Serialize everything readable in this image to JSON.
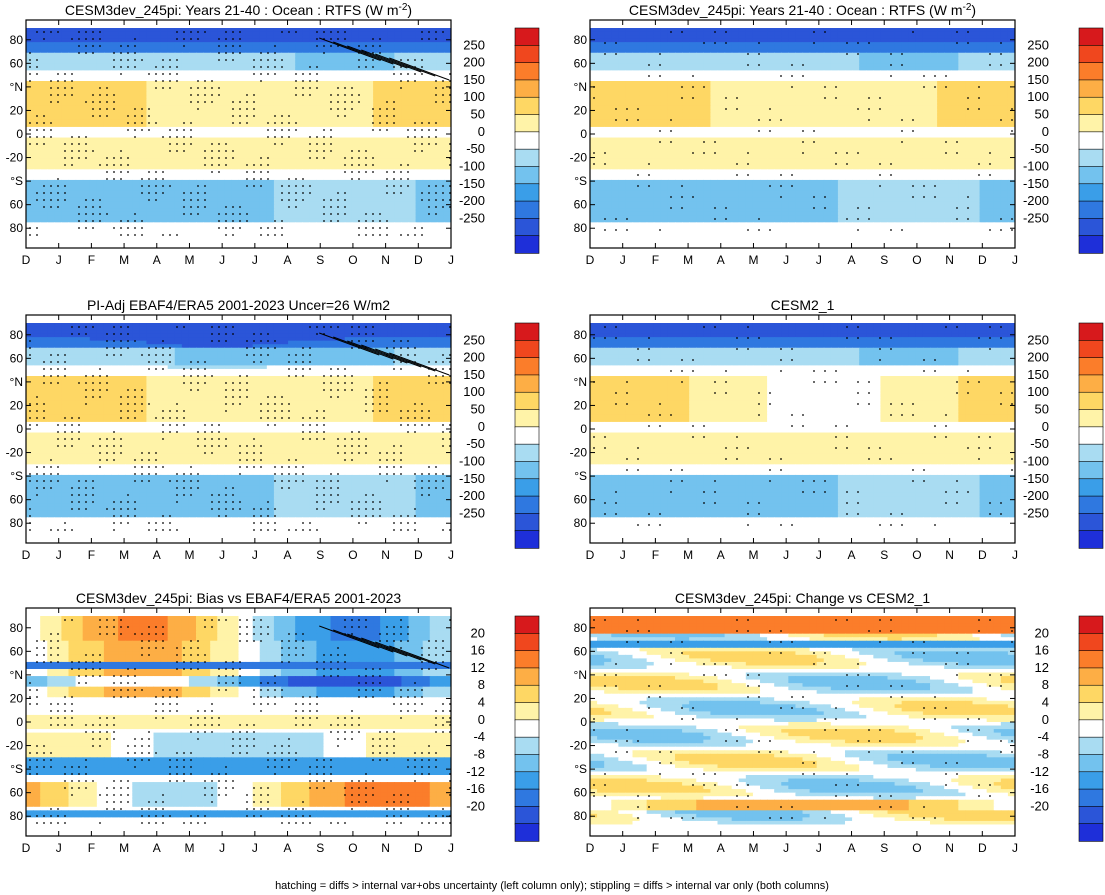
{
  "footnote": "hatching = diffs > internal var+obs uncertainty (left column only); stippling = diffs > internal var only (both columns)",
  "chart_data": [
    {
      "type": "heatmap",
      "id": "p1",
      "title_main": "CESM3dev_245pi: Years 21-40 : Ocean : RTFS (W m",
      "title_sup": "-2",
      "title_tail": ")",
      "x_labels": [
        "D",
        "J",
        "F",
        "M",
        "A",
        "M",
        "J",
        "J",
        "A",
        "S",
        "O",
        "N",
        "D",
        "J"
      ],
      "y_ticks": [
        {
          "v": 80,
          "l": "80"
        },
        {
          "v": 60,
          "l": "60"
        },
        {
          "v": 40,
          "l": "°N"
        },
        {
          "v": 20,
          "l": "20"
        },
        {
          "v": 0,
          "l": "0"
        },
        {
          "v": -20,
          "l": "-20"
        },
        {
          "v": -40,
          "l": "°S"
        },
        {
          "v": -60,
          "l": "60"
        },
        {
          "v": -80,
          "l": "80"
        }
      ],
      "ylim": [
        -90,
        90
      ],
      "colorbar": {
        "levels": [
          "250",
          "200",
          "150",
          "100",
          "50",
          "0",
          "-50",
          "-100",
          "-150",
          "-200",
          "-250"
        ]
      },
      "hatched": true,
      "stipple": "heavy"
    },
    {
      "type": "heatmap",
      "id": "p2",
      "title_main": "CESM3dev_245pi: Years 21-40 : Ocean : RTFS (W m",
      "title_sup": "-2",
      "title_tail": ")",
      "x_labels": [
        "D",
        "J",
        "F",
        "M",
        "A",
        "M",
        "J",
        "J",
        "A",
        "S",
        "O",
        "N",
        "D",
        "J"
      ],
      "y_ticks": [
        {
          "v": 80,
          "l": "80"
        },
        {
          "v": 60,
          "l": "60"
        },
        {
          "v": 40,
          "l": "°N"
        },
        {
          "v": 20,
          "l": "20"
        },
        {
          "v": 0,
          "l": "0"
        },
        {
          "v": -20,
          "l": "-20"
        },
        {
          "v": -40,
          "l": "°S"
        },
        {
          "v": -60,
          "l": "60"
        },
        {
          "v": -80,
          "l": "80"
        }
      ],
      "ylim": [
        -90,
        90
      ],
      "colorbar": {
        "levels": [
          "250",
          "200",
          "150",
          "100",
          "50",
          "0",
          "-50",
          "-100",
          "-150",
          "-200",
          "-250"
        ]
      },
      "hatched": false,
      "stipple": "light"
    },
    {
      "type": "heatmap",
      "id": "p3",
      "title_main": "PI-Adj EBAF4/ERA5 2001-2023 Uncer=26 W/m2",
      "title_sup": "",
      "title_tail": "",
      "x_labels": [
        "D",
        "J",
        "F",
        "M",
        "A",
        "M",
        "J",
        "J",
        "A",
        "S",
        "O",
        "N",
        "D",
        "J"
      ],
      "y_ticks": [
        {
          "v": 80,
          "l": "80"
        },
        {
          "v": 60,
          "l": "60"
        },
        {
          "v": 40,
          "l": "°N"
        },
        {
          "v": 20,
          "l": "20"
        },
        {
          "v": 0,
          "l": "0"
        },
        {
          "v": -20,
          "l": "-20"
        },
        {
          "v": -40,
          "l": "°S"
        },
        {
          "v": -60,
          "l": "60"
        },
        {
          "v": -80,
          "l": "80"
        }
      ],
      "ylim": [
        -90,
        90
      ],
      "colorbar": {
        "levels": [
          "250",
          "200",
          "150",
          "100",
          "50",
          "0",
          "-50",
          "-100",
          "-150",
          "-200",
          "-250"
        ]
      },
      "hatched": true,
      "stipple": "heavy"
    },
    {
      "type": "heatmap",
      "id": "p4",
      "title_main": "CESM2_1",
      "title_sup": "",
      "title_tail": "",
      "x_labels": [
        "D",
        "J",
        "F",
        "M",
        "A",
        "M",
        "J",
        "J",
        "A",
        "S",
        "O",
        "N",
        "D",
        "J"
      ],
      "y_ticks": [
        {
          "v": 80,
          "l": "80"
        },
        {
          "v": 60,
          "l": "60"
        },
        {
          "v": 40,
          "l": "°N"
        },
        {
          "v": 20,
          "l": "20"
        },
        {
          "v": 0,
          "l": "0"
        },
        {
          "v": -20,
          "l": "-20"
        },
        {
          "v": -40,
          "l": "°S"
        },
        {
          "v": -60,
          "l": "60"
        },
        {
          "v": -80,
          "l": "80"
        }
      ],
      "ylim": [
        -90,
        90
      ],
      "colorbar": {
        "levels": [
          "250",
          "200",
          "150",
          "100",
          "50",
          "0",
          "-50",
          "-100",
          "-150",
          "-200",
          "-250"
        ]
      },
      "hatched": false,
      "stipple": "light"
    },
    {
      "type": "heatmap",
      "id": "p5",
      "title_main": "CESM3dev_245pi: Bias vs EBAF4/ERA5 2001-2023",
      "title_sup": "",
      "title_tail": "",
      "x_labels": [
        "D",
        "J",
        "F",
        "M",
        "A",
        "M",
        "J",
        "J",
        "A",
        "S",
        "O",
        "N",
        "D",
        "J"
      ],
      "y_ticks": [
        {
          "v": 80,
          "l": "80"
        },
        {
          "v": 60,
          "l": "60"
        },
        {
          "v": 40,
          "l": "°N"
        },
        {
          "v": 20,
          "l": "20"
        },
        {
          "v": 0,
          "l": "0"
        },
        {
          "v": -20,
          "l": "-20"
        },
        {
          "v": -40,
          "l": "°S"
        },
        {
          "v": -60,
          "l": "60"
        },
        {
          "v": -80,
          "l": "80"
        }
      ],
      "ylim": [
        -90,
        90
      ],
      "colorbar": {
        "levels": [
          "20",
          "16",
          "12",
          "8",
          "4",
          "0",
          "-4",
          "-8",
          "-12",
          "-16",
          "-20"
        ]
      },
      "hatched": true,
      "stipple": "heavy"
    },
    {
      "type": "heatmap",
      "id": "p6",
      "title_main": "CESM3dev_245pi: Change vs CESM2_1",
      "title_sup": "",
      "title_tail": "",
      "x_labels": [
        "D",
        "J",
        "F",
        "M",
        "A",
        "M",
        "J",
        "J",
        "A",
        "S",
        "O",
        "N",
        "D",
        "J"
      ],
      "y_ticks": [
        {
          "v": 80,
          "l": "80"
        },
        {
          "v": 60,
          "l": "60"
        },
        {
          "v": 40,
          "l": "°N"
        },
        {
          "v": 20,
          "l": "20"
        },
        {
          "v": 0,
          "l": "0"
        },
        {
          "v": -20,
          "l": "-20"
        },
        {
          "v": -40,
          "l": "°S"
        },
        {
          "v": -60,
          "l": "60"
        },
        {
          "v": -80,
          "l": "80"
        }
      ],
      "ylim": [
        -90,
        90
      ],
      "colorbar": {
        "levels": [
          "20",
          "16",
          "12",
          "8",
          "4",
          "0",
          "-4",
          "-8",
          "-12",
          "-16",
          "-20"
        ]
      },
      "hatched": false,
      "stipple": "light"
    }
  ]
}
